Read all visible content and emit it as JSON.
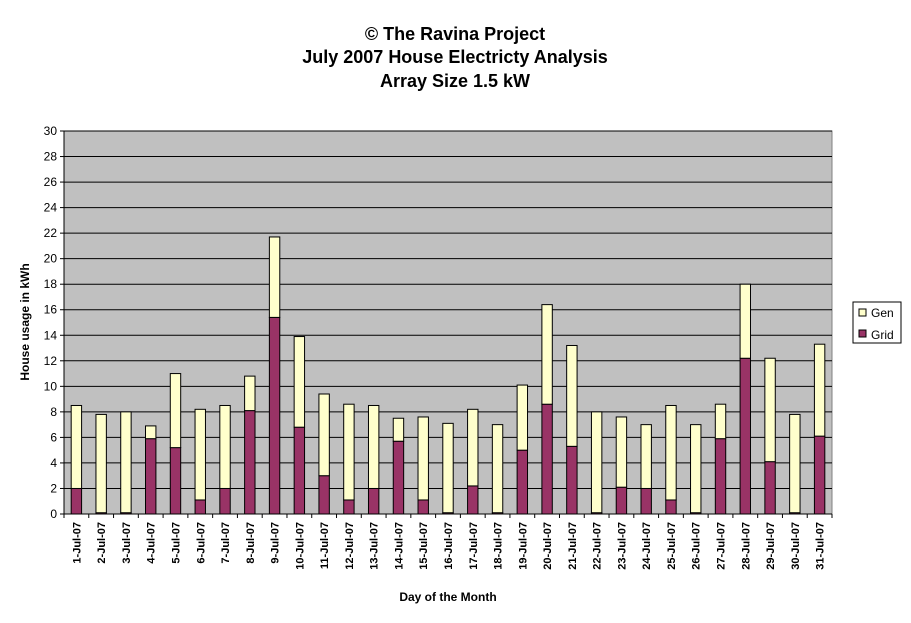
{
  "chart_data": {
    "type": "bar",
    "stacked": true,
    "title": [
      "© The Ravina Project",
      "July 2007 House Electricty Analysis",
      "Array Size 1.5 kW"
    ],
    "xlabel": "Day of the Month",
    "ylabel": "House usage in kWh",
    "ylim": [
      0,
      30
    ],
    "yticks": [
      0,
      2,
      4,
      6,
      8,
      10,
      12,
      14,
      16,
      18,
      20,
      22,
      24,
      26,
      28,
      30
    ],
    "grid": true,
    "legend_position": "right",
    "categories": [
      "1-Jul-07",
      "2-Jul-07",
      "3-Jul-07",
      "4-Jul-07",
      "5-Jul-07",
      "6-Jul-07",
      "7-Jul-07",
      "8-Jul-07",
      "9-Jul-07",
      "10-Jul-07",
      "11-Jul-07",
      "12-Jul-07",
      "13-Jul-07",
      "14-Jul-07",
      "15-Jul-07",
      "16-Jul-07",
      "17-Jul-07",
      "18-Jul-07",
      "19-Jul-07",
      "20-Jul-07",
      "21-Jul-07",
      "22-Jul-07",
      "23-Jul-07",
      "24-Jul-07",
      "25-Jul-07",
      "26-Jul-07",
      "27-Jul-07",
      "28-Jul-07",
      "29-Jul-07",
      "30-Jul-07",
      "31-Jul-07"
    ],
    "series": [
      {
        "name": "Grid",
        "color": "#993366",
        "values": [
          2.0,
          0.1,
          0.1,
          5.9,
          5.2,
          1.1,
          2.0,
          8.1,
          15.4,
          6.8,
          3.0,
          1.1,
          2.0,
          5.7,
          1.1,
          0.1,
          2.2,
          0.1,
          5.0,
          8.6,
          5.3,
          0.1,
          2.1,
          2.0,
          1.1,
          0.1,
          5.9,
          12.2,
          4.1,
          0.1,
          6.1
        ]
      },
      {
        "name": "Gen",
        "color": "#FFFFCC",
        "values": [
          6.5,
          7.7,
          7.9,
          1.0,
          5.8,
          7.1,
          6.5,
          2.7,
          6.3,
          7.1,
          6.4,
          7.5,
          6.5,
          1.8,
          6.5,
          7.0,
          6.0,
          6.9,
          5.1,
          7.8,
          7.9,
          7.9,
          5.5,
          5.0,
          7.4,
          6.9,
          2.7,
          5.8,
          8.1,
          7.7,
          7.2
        ]
      }
    ],
    "plot_bg": "#C0C0C0",
    "legend": [
      {
        "label": "Gen"
      },
      {
        "label": "Grid"
      }
    ]
  }
}
